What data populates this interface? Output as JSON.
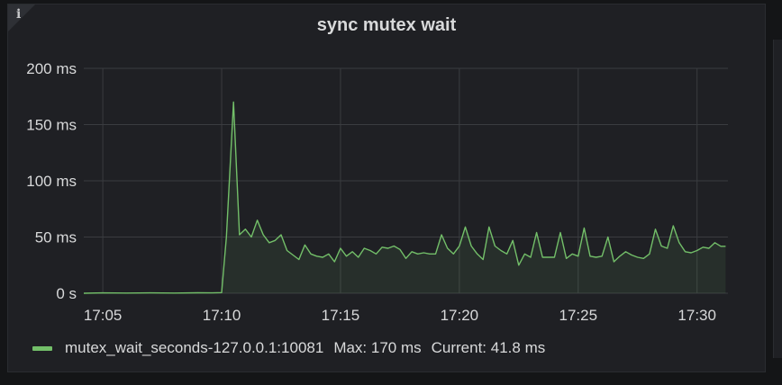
{
  "panel": {
    "title": "sync mutex wait",
    "info_icon": "info-icon",
    "info_glyph": "i"
  },
  "legend": {
    "series_name": "mutex_wait_seconds-127.0.0.1:10081",
    "max_text": "Max: 170 ms",
    "current_text": "Current: 41.8 ms",
    "color": "#73bf69"
  },
  "chart_data": {
    "type": "area",
    "title": "sync mutex wait",
    "xlabel": "",
    "ylabel": "",
    "x_unit": "minutes past 17:00",
    "xlim": [
      4.2,
      31.3
    ],
    "ylim": [
      0,
      200
    ],
    "grid": true,
    "legend_position": "bottom-left",
    "y_ticks": [
      {
        "value": 0,
        "label": "0 s"
      },
      {
        "value": 50,
        "label": "50 ms"
      },
      {
        "value": 100,
        "label": "100 ms"
      },
      {
        "value": 150,
        "label": "150 ms"
      },
      {
        "value": 200,
        "label": "200 ms"
      }
    ],
    "x_ticks": [
      {
        "value": 5,
        "label": "17:05"
      },
      {
        "value": 10,
        "label": "17:10"
      },
      {
        "value": 15,
        "label": "17:15"
      },
      {
        "value": 20,
        "label": "17:20"
      },
      {
        "value": 25,
        "label": "17:25"
      },
      {
        "value": 30,
        "label": "17:30"
      }
    ],
    "series": [
      {
        "name": "mutex_wait_seconds-127.0.0.1:10081",
        "color": "#73bf69",
        "x": [
          4.2,
          5.0,
          6.0,
          7.0,
          8.0,
          9.0,
          9.6,
          10.0,
          10.2,
          10.5,
          10.75,
          11.0,
          11.25,
          11.5,
          11.75,
          12.0,
          12.25,
          12.5,
          12.75,
          13.0,
          13.25,
          13.5,
          13.75,
          14.0,
          14.25,
          14.5,
          14.75,
          15.0,
          15.25,
          15.5,
          15.75,
          16.0,
          16.25,
          16.5,
          16.75,
          17.0,
          17.25,
          17.5,
          17.75,
          18.0,
          18.25,
          18.5,
          18.75,
          19.0,
          19.25,
          19.5,
          19.75,
          20.0,
          20.25,
          20.5,
          20.75,
          21.0,
          21.25,
          21.5,
          21.75,
          22.0,
          22.25,
          22.5,
          22.75,
          23.0,
          23.25,
          23.5,
          23.75,
          24.0,
          24.25,
          24.5,
          24.75,
          25.0,
          25.25,
          25.5,
          25.75,
          26.0,
          26.25,
          26.5,
          26.75,
          27.0,
          27.25,
          27.5,
          27.75,
          28.0,
          28.25,
          28.5,
          28.75,
          29.0,
          29.25,
          29.5,
          29.75,
          30.0,
          30.25,
          30.5,
          30.75,
          31.0,
          31.2
        ],
        "values": [
          0,
          0.3,
          0.2,
          0.3,
          0.2,
          0.4,
          0.3,
          0.6,
          50,
          170,
          52,
          57,
          50,
          65,
          52,
          45,
          47,
          52,
          38,
          34,
          30,
          43,
          35,
          33,
          32,
          35,
          28,
          40,
          33,
          37,
          32,
          40,
          38,
          35,
          41,
          40,
          42,
          39,
          31,
          37,
          35,
          36,
          35,
          35,
          52,
          40,
          35,
          42,
          59,
          42,
          35,
          30,
          59,
          42,
          38,
          35,
          47,
          25,
          35,
          32,
          54,
          32,
          32,
          32,
          54,
          31,
          35,
          33,
          58,
          33,
          32,
          33,
          50,
          28,
          33,
          37,
          34,
          32,
          31,
          35,
          57,
          42,
          40,
          60,
          45,
          37,
          36,
          38,
          41,
          40,
          45,
          41.8,
          41.8
        ]
      }
    ]
  }
}
